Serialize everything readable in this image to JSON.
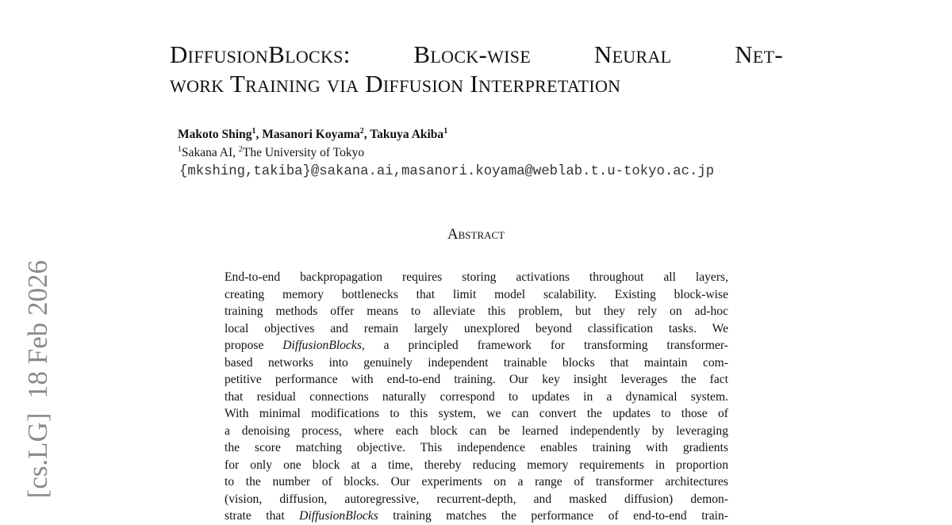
{
  "sidebar": "[cs.LG]  18 Feb 2026",
  "title": {
    "lines": [
      "DiffusionBlocks: Block-wise Neural Net-",
      "work Training via Diffusion Interpretation"
    ]
  },
  "authors": [
    {
      "name": "Makoto Shing",
      "sup": "1",
      "after": ", "
    },
    {
      "name": "Masanori Koyama",
      "sup": "2",
      "after": ", "
    },
    {
      "name": "Takuya Akiba",
      "sup": "1"
    }
  ],
  "affiliations": [
    {
      "sup": "1",
      "name": "Sakana AI, "
    },
    {
      "sup": "2",
      "name": "The University of Tokyo"
    }
  ],
  "emails": "{mkshing,takiba}@sakana.ai,masanori.koyama@weblab.t.u-tokyo.ac.jp",
  "abstract": {
    "heading": "Abstract",
    "lines": [
      "End-to-end backpropagation requires storing activations throughout all layers,",
      "creating memory bottlenecks that limit model scalability.  Existing block-wise",
      "training methods offer means to alleviate this problem, but they rely on ad-hoc",
      "local objectives and remain largely unexplored beyond classification tasks.  We",
      [
        "propose ",
        "DiffusionBlocks",
        ", a principled framework for transforming transformer-"
      ],
      "based networks into genuinely independent trainable blocks that maintain com-",
      "petitive performance with end-to-end training. Our key insight leverages the fact",
      "that residual connections naturally correspond to updates in a dynamical system.",
      "With minimal modifications to this system, we can convert the updates to those of",
      "a denoising process, where each block can be learned independently by leveraging",
      "the score matching objective.  This independence enables training with gradients",
      "for only one block at a time, thereby reducing memory requirements in proportion",
      "to the number of blocks. Our experiments on a range of transformer architectures",
      "(vision, diffusion, autoregressive, recurrent-depth, and masked diffusion) demon-",
      [
        "strate that ",
        "DiffusionBlocks",
        " training matches the performance of end-to-end train-"
      ]
    ]
  }
}
